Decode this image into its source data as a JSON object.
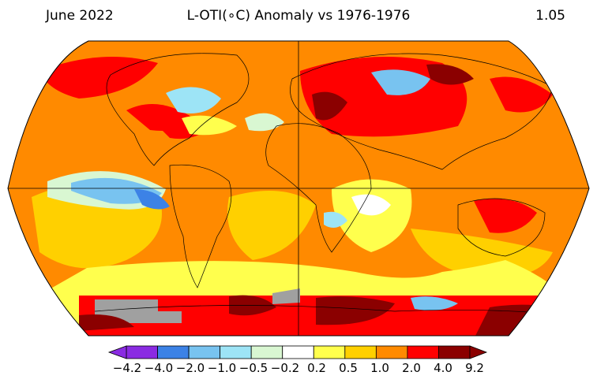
{
  "header": {
    "left": "June 2022",
    "center": "L-OTI(∘C) Anomaly vs 1976-1976",
    "right": "1.05"
  },
  "map": {
    "projection": "robinson",
    "gridlines": [
      "equator",
      "prime meridian"
    ],
    "missing_data_color": "#a0a0a0"
  },
  "colorbar": {
    "labels": [
      "−4.2",
      "−4.0",
      "−2.0",
      "−1.0",
      "−0.5",
      "−0.2",
      "0.2",
      "0.5",
      "1.0",
      "2.0",
      "4.0",
      "9.2"
    ],
    "colors": [
      "#8a2be2",
      "#3c82e6",
      "#78c3f0",
      "#9de4f6",
      "#d9f7d2",
      "#ffffff",
      "#ffff4d",
      "#ffd000",
      "#ff8a00",
      "#ff0000",
      "#8b0000"
    ]
  }
}
